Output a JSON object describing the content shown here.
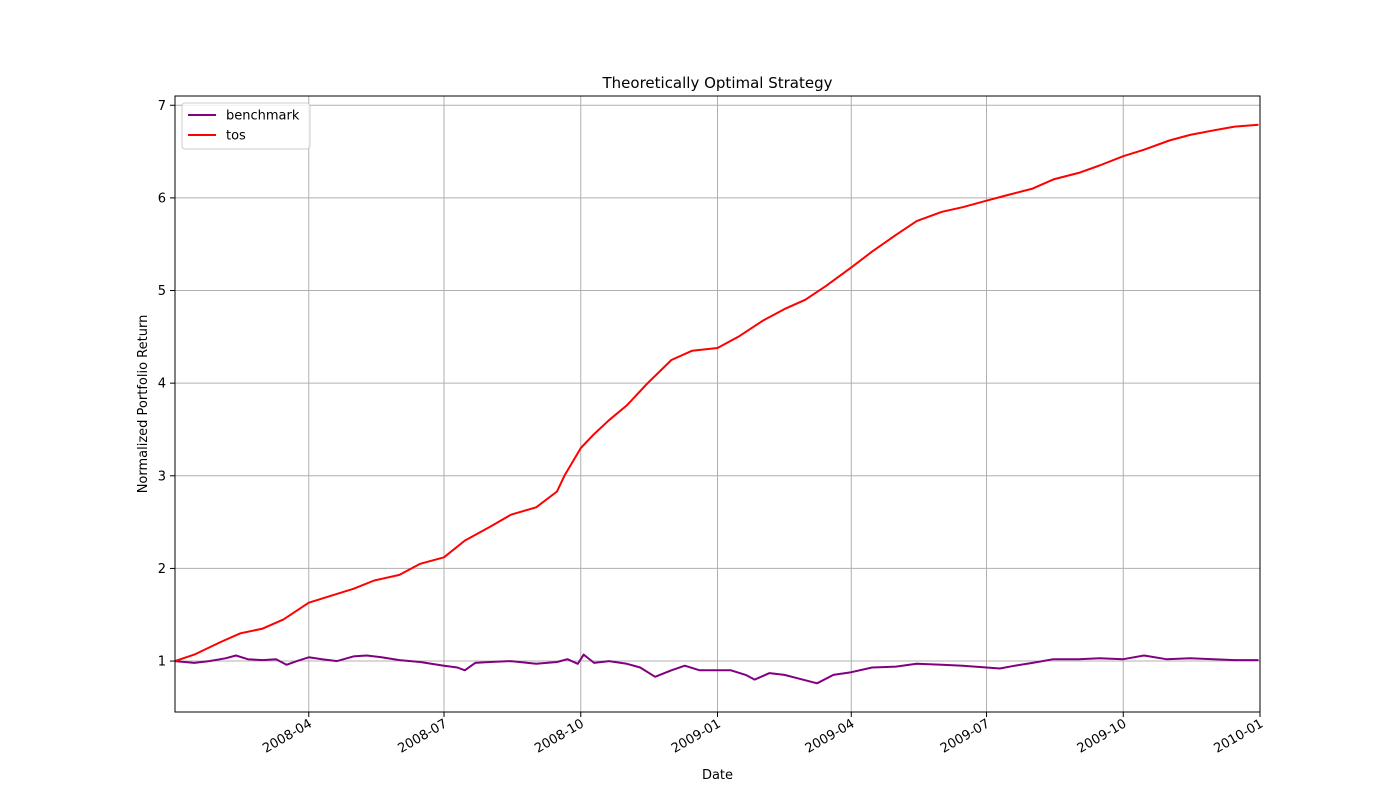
{
  "chart_data": {
    "type": "line",
    "title": "Theoretically Optimal Strategy",
    "xlabel": "Date",
    "ylabel": "Normalized Portfolio Return",
    "xlim": [
      "2008-01-02",
      "2010-01-01"
    ],
    "ylim": [
      0.45,
      7.1
    ],
    "x_ticks": [
      "2008-04",
      "2008-07",
      "2008-10",
      "2009-01",
      "2009-04",
      "2009-07",
      "2009-10",
      "2010-01"
    ],
    "x_tick_dates": [
      "2008-04-01",
      "2008-07-01",
      "2008-10-01",
      "2009-01-01",
      "2009-04-01",
      "2009-07-01",
      "2009-10-01",
      "2010-01-01"
    ],
    "y_ticks": [
      "1",
      "2",
      "3",
      "4",
      "5",
      "6",
      "7"
    ],
    "grid": true,
    "legend_position": "top-left",
    "series": [
      {
        "name": "benchmark",
        "color": "#800080",
        "points": [
          [
            "2008-01-02",
            1.0
          ],
          [
            "2008-01-15",
            0.98
          ],
          [
            "2008-01-25",
            1.0
          ],
          [
            "2008-02-05",
            1.03
          ],
          [
            "2008-02-12",
            1.06
          ],
          [
            "2008-02-20",
            1.02
          ],
          [
            "2008-03-01",
            1.01
          ],
          [
            "2008-03-10",
            1.02
          ],
          [
            "2008-03-17",
            0.96
          ],
          [
            "2008-03-24",
            1.0
          ],
          [
            "2008-04-01",
            1.04
          ],
          [
            "2008-04-10",
            1.02
          ],
          [
            "2008-04-20",
            1.0
          ],
          [
            "2008-05-01",
            1.05
          ],
          [
            "2008-05-10",
            1.06
          ],
          [
            "2008-05-20",
            1.04
          ],
          [
            "2008-06-01",
            1.01
          ],
          [
            "2008-06-15",
            0.99
          ],
          [
            "2008-07-01",
            0.95
          ],
          [
            "2008-07-10",
            0.93
          ],
          [
            "2008-07-15",
            0.9
          ],
          [
            "2008-07-22",
            0.98
          ],
          [
            "2008-08-01",
            0.99
          ],
          [
            "2008-08-15",
            1.0
          ],
          [
            "2008-09-01",
            0.97
          ],
          [
            "2008-09-15",
            0.99
          ],
          [
            "2008-09-22",
            1.02
          ],
          [
            "2008-09-29",
            0.97
          ],
          [
            "2008-10-03",
            1.07
          ],
          [
            "2008-10-10",
            0.98
          ],
          [
            "2008-10-20",
            1.0
          ],
          [
            "2008-11-01",
            0.97
          ],
          [
            "2008-11-10",
            0.93
          ],
          [
            "2008-11-20",
            0.83
          ],
          [
            "2008-12-01",
            0.9
          ],
          [
            "2008-12-10",
            0.95
          ],
          [
            "2008-12-20",
            0.9
          ],
          [
            "2009-01-01",
            0.9
          ],
          [
            "2009-01-10",
            0.9
          ],
          [
            "2009-01-20",
            0.85
          ],
          [
            "2009-01-26",
            0.8
          ],
          [
            "2009-02-05",
            0.87
          ],
          [
            "2009-02-15",
            0.85
          ],
          [
            "2009-02-25",
            0.81
          ],
          [
            "2009-03-09",
            0.76
          ],
          [
            "2009-03-20",
            0.85
          ],
          [
            "2009-04-01",
            0.88
          ],
          [
            "2009-04-15",
            0.93
          ],
          [
            "2009-05-01",
            0.94
          ],
          [
            "2009-05-15",
            0.97
          ],
          [
            "2009-06-01",
            0.96
          ],
          [
            "2009-06-15",
            0.95
          ],
          [
            "2009-07-01",
            0.93
          ],
          [
            "2009-07-10",
            0.92
          ],
          [
            "2009-07-20",
            0.95
          ],
          [
            "2009-08-01",
            0.98
          ],
          [
            "2009-08-15",
            1.02
          ],
          [
            "2009-09-01",
            1.02
          ],
          [
            "2009-09-15",
            1.03
          ],
          [
            "2009-10-01",
            1.02
          ],
          [
            "2009-10-15",
            1.06
          ],
          [
            "2009-10-30",
            1.02
          ],
          [
            "2009-11-15",
            1.03
          ],
          [
            "2009-12-01",
            1.02
          ],
          [
            "2009-12-15",
            1.01
          ],
          [
            "2009-12-31",
            1.01
          ]
        ]
      },
      {
        "name": "tos",
        "color": "#ff0000",
        "points": [
          [
            "2008-01-02",
            1.0
          ],
          [
            "2008-01-15",
            1.07
          ],
          [
            "2008-02-01",
            1.2
          ],
          [
            "2008-02-15",
            1.3
          ],
          [
            "2008-03-01",
            1.35
          ],
          [
            "2008-03-15",
            1.45
          ],
          [
            "2008-04-01",
            1.63
          ],
          [
            "2008-04-15",
            1.7
          ],
          [
            "2008-05-01",
            1.78
          ],
          [
            "2008-05-15",
            1.87
          ],
          [
            "2008-06-01",
            1.93
          ],
          [
            "2008-06-15",
            2.05
          ],
          [
            "2008-07-01",
            2.12
          ],
          [
            "2008-07-15",
            2.3
          ],
          [
            "2008-08-01",
            2.45
          ],
          [
            "2008-08-15",
            2.58
          ],
          [
            "2008-09-01",
            2.66
          ],
          [
            "2008-09-15",
            2.83
          ],
          [
            "2008-09-20",
            3.0
          ],
          [
            "2008-10-01",
            3.3
          ],
          [
            "2008-10-10",
            3.45
          ],
          [
            "2008-10-20",
            3.6
          ],
          [
            "2008-11-01",
            3.76
          ],
          [
            "2008-11-15",
            4.0
          ],
          [
            "2008-12-01",
            4.25
          ],
          [
            "2008-12-15",
            4.35
          ],
          [
            "2009-01-01",
            4.38
          ],
          [
            "2009-01-15",
            4.5
          ],
          [
            "2009-02-01",
            4.68
          ],
          [
            "2009-02-15",
            4.8
          ],
          [
            "2009-03-01",
            4.9
          ],
          [
            "2009-03-15",
            5.05
          ],
          [
            "2009-04-01",
            5.25
          ],
          [
            "2009-04-15",
            5.42
          ],
          [
            "2009-05-01",
            5.6
          ],
          [
            "2009-05-15",
            5.75
          ],
          [
            "2009-06-01",
            5.85
          ],
          [
            "2009-06-15",
            5.9
          ],
          [
            "2009-07-01",
            5.97
          ],
          [
            "2009-07-15",
            6.03
          ],
          [
            "2009-08-01",
            6.1
          ],
          [
            "2009-08-15",
            6.2
          ],
          [
            "2009-09-01",
            6.27
          ],
          [
            "2009-09-15",
            6.35
          ],
          [
            "2009-10-01",
            6.45
          ],
          [
            "2009-10-15",
            6.52
          ],
          [
            "2009-11-01",
            6.62
          ],
          [
            "2009-11-15",
            6.68
          ],
          [
            "2009-12-01",
            6.73
          ],
          [
            "2009-12-15",
            6.77
          ],
          [
            "2009-12-31",
            6.79
          ]
        ]
      }
    ]
  }
}
